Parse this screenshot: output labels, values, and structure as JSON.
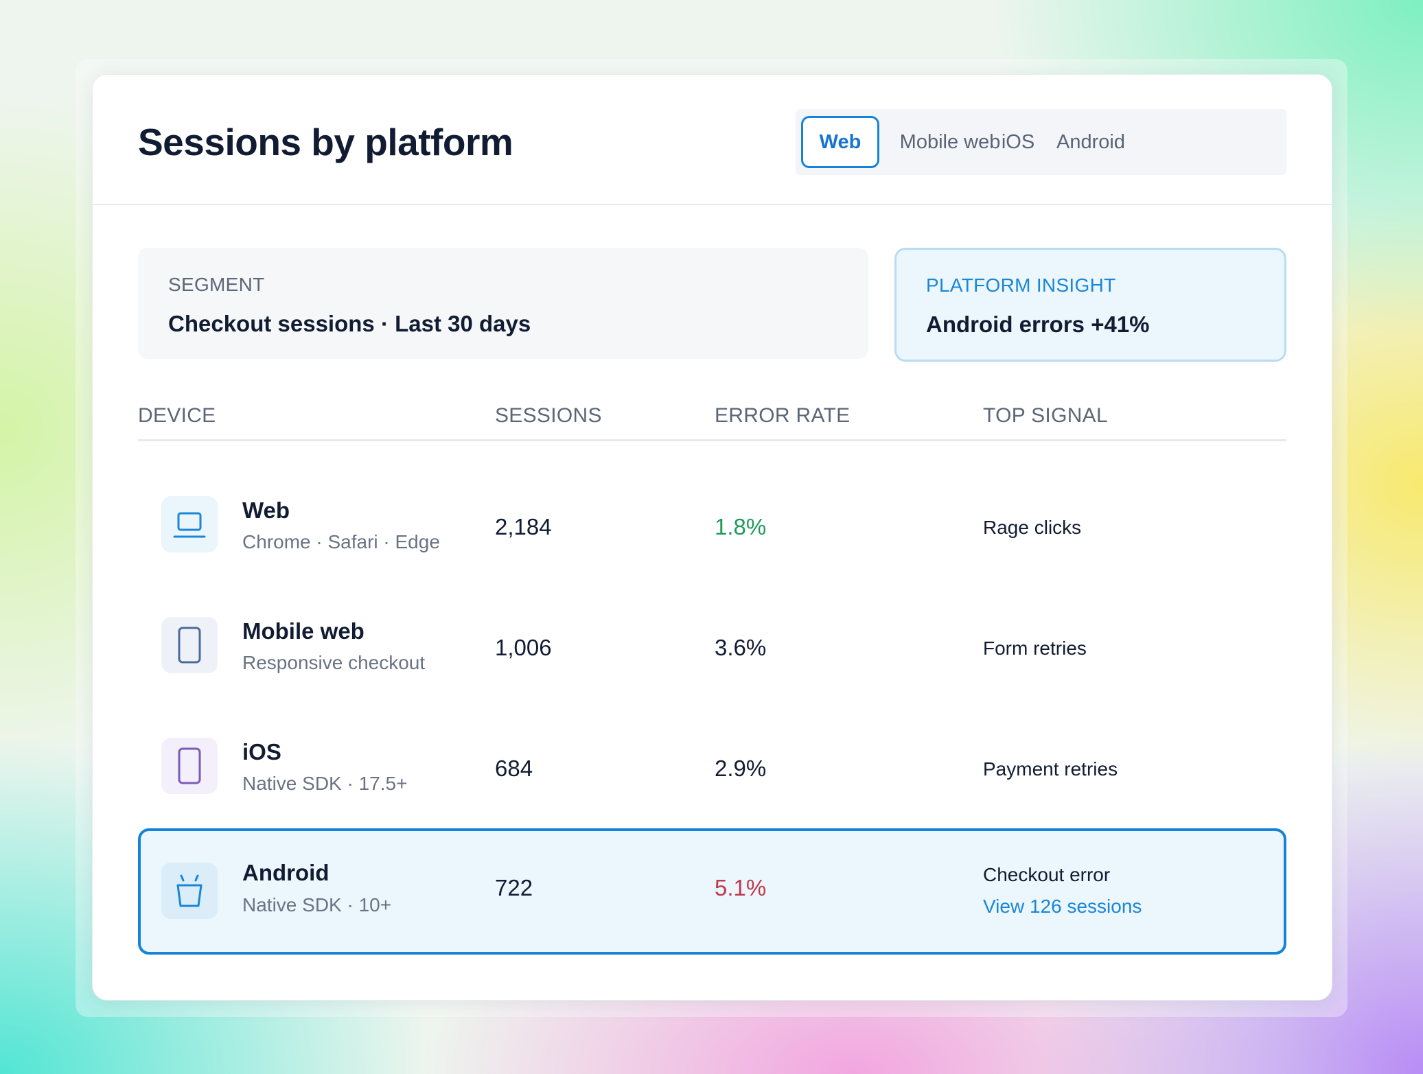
{
  "header": {
    "title": "Sessions by platform",
    "tabs": [
      {
        "label": "Web",
        "active": true
      },
      {
        "label": "Mobile web",
        "active": false
      },
      {
        "label": "iOS",
        "active": false
      },
      {
        "label": "Android",
        "active": false
      }
    ]
  },
  "segment": {
    "label": "SEGMENT",
    "value": "Checkout sessions · Last 30 days"
  },
  "insight": {
    "label": "PLATFORM INSIGHT",
    "value": "Android errors +41%"
  },
  "table": {
    "columns": [
      "DEVICE",
      "SESSIONS",
      "ERROR RATE",
      "TOP SIGNAL"
    ],
    "rows": [
      {
        "icon": "laptop-icon",
        "name": "Web",
        "sub": "Chrome · Safari · Edge",
        "sessions": "2,184",
        "error_rate": "1.8%",
        "rate_color": "#1f9a5a",
        "signal": "Rage clicks"
      },
      {
        "icon": "phone-icon",
        "name": "Mobile web",
        "sub": "Responsive checkout",
        "sessions": "1,006",
        "error_rate": "3.6%",
        "rate_color": "#111c33",
        "signal": "Form retries"
      },
      {
        "icon": "ios-device-icon",
        "name": "iOS",
        "sub": "Native SDK · 17.5+",
        "sessions": "684",
        "error_rate": "2.9%",
        "rate_color": "#111c33",
        "signal": "Payment retries"
      },
      {
        "icon": "android-icon",
        "name": "Android",
        "sub": "Native SDK · 10+",
        "sessions": "722",
        "error_rate": "5.1%",
        "rate_color": "#c0394b",
        "signal": "Checkout error",
        "link": "View 126 sessions"
      }
    ]
  },
  "colors": {
    "accent": "#1683d8",
    "success": "#1f9a5a",
    "danger": "#c0394b"
  }
}
